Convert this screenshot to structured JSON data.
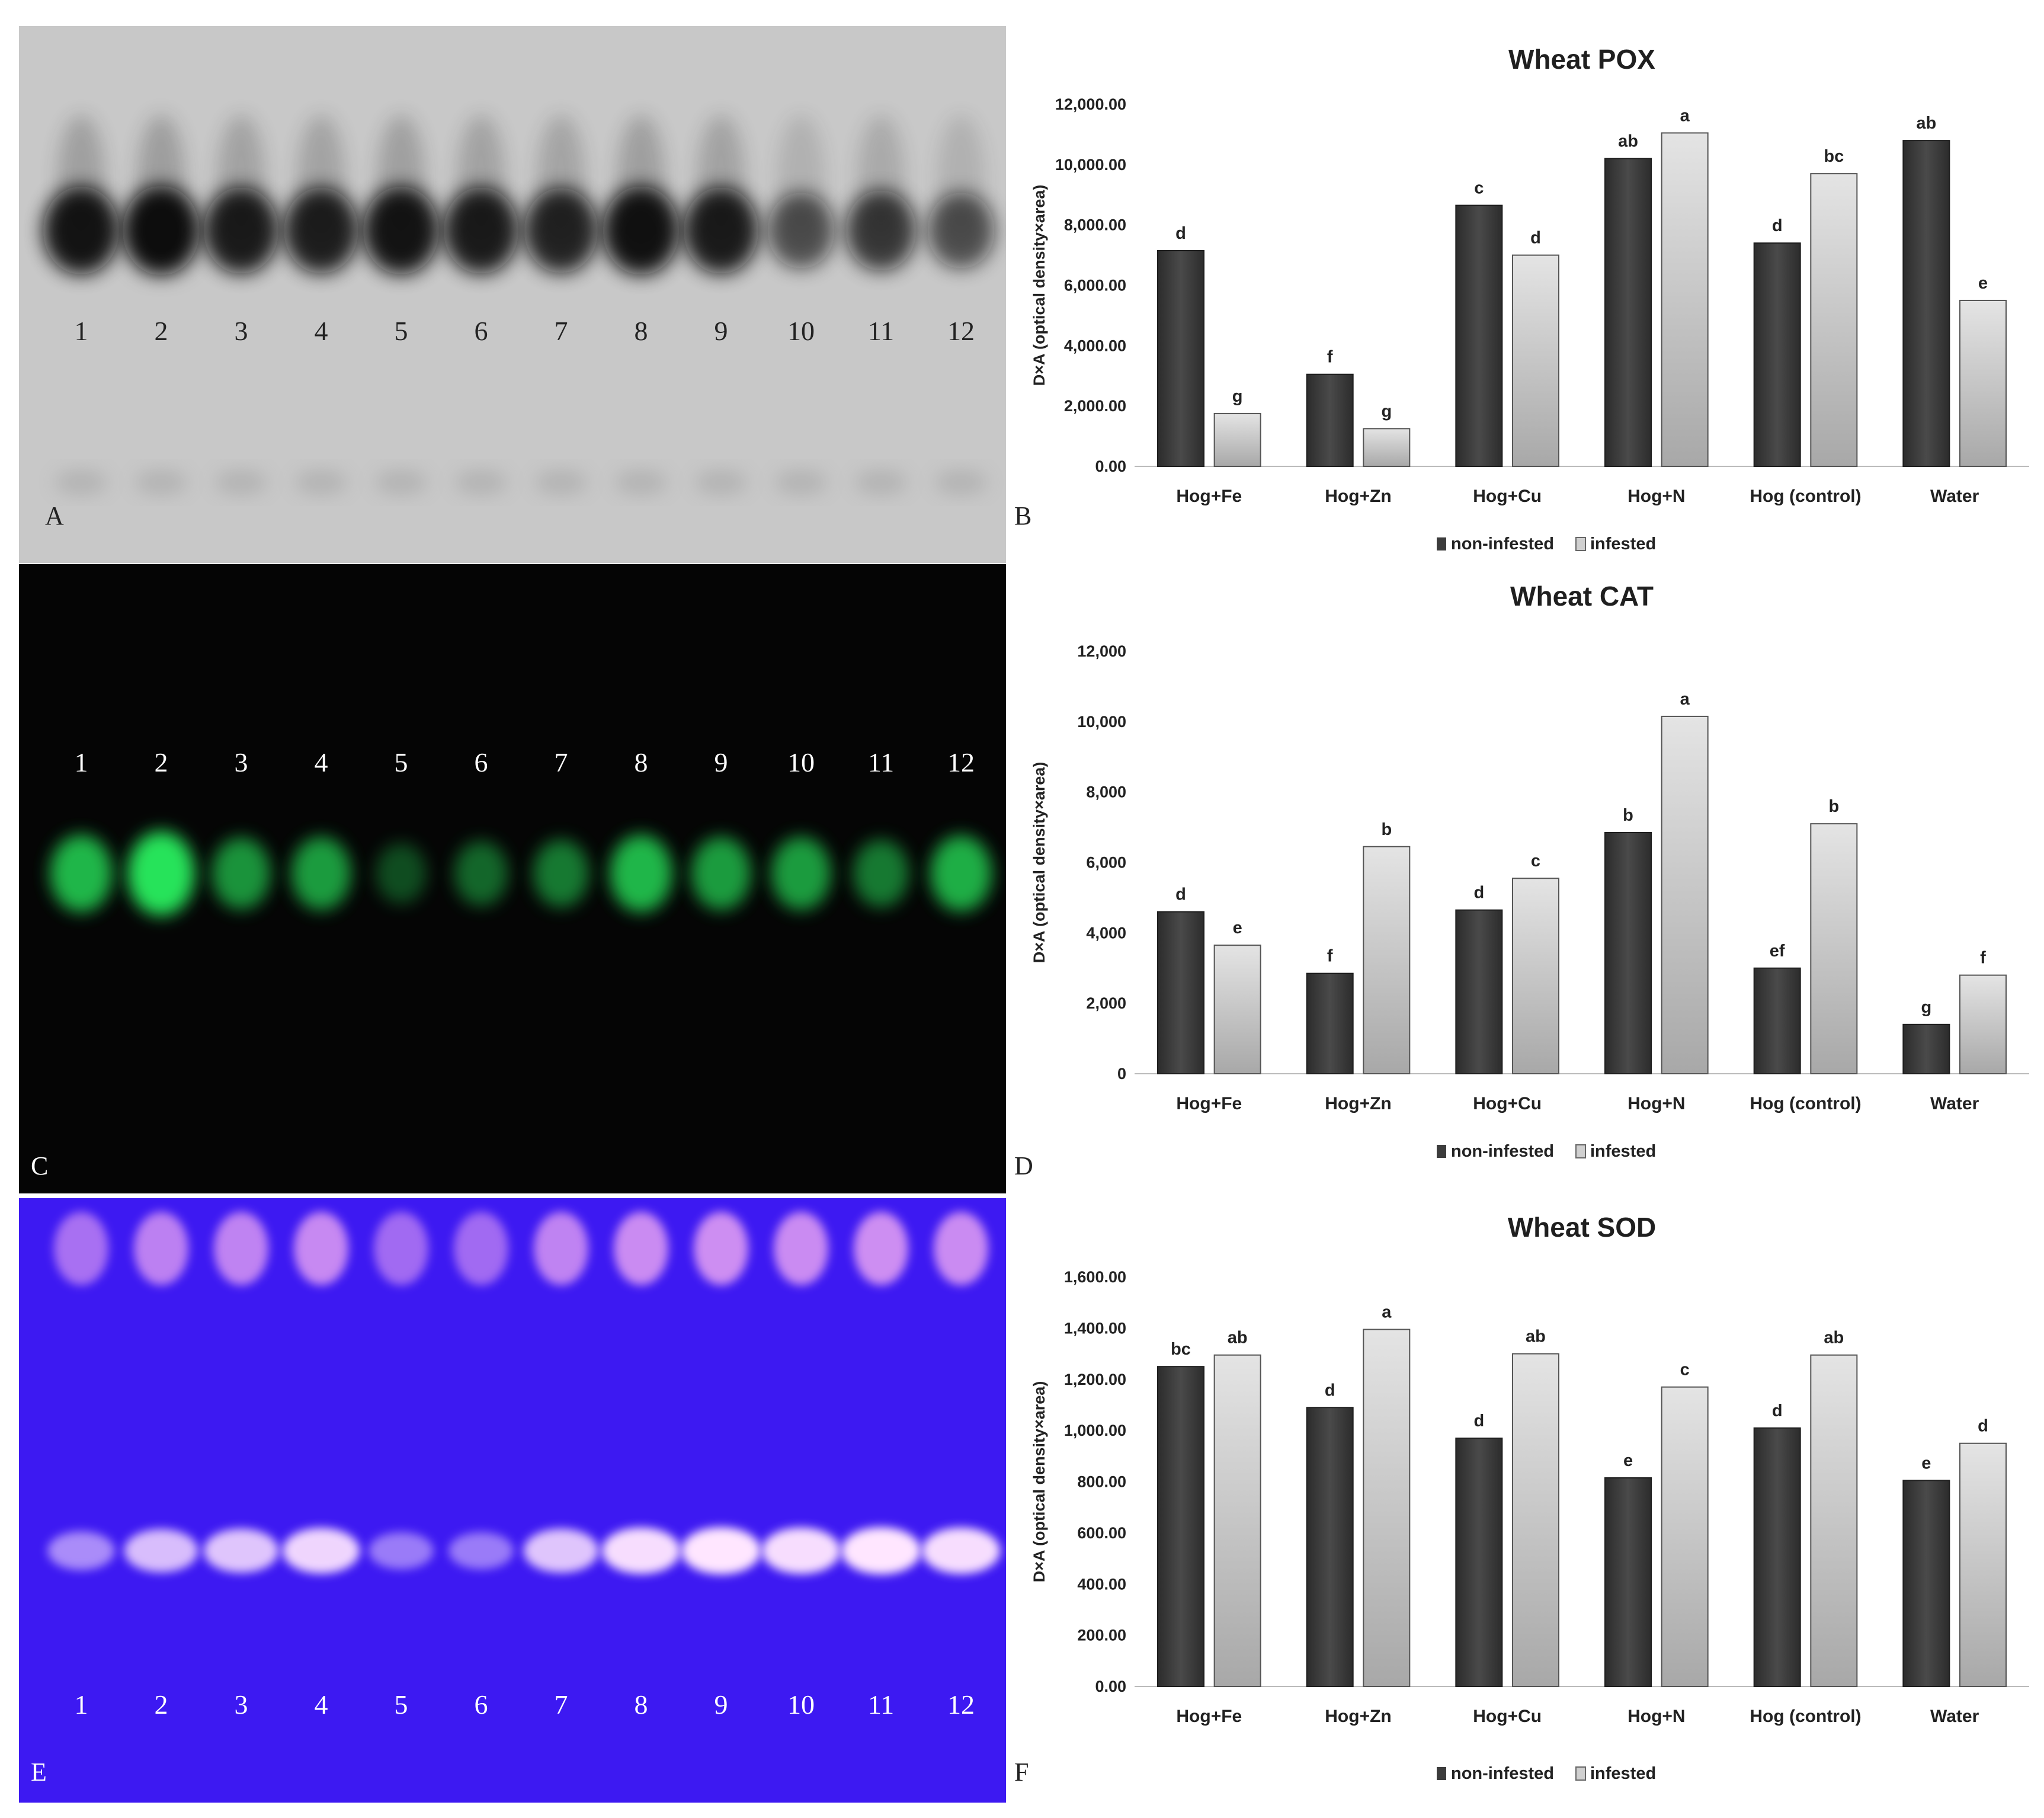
{
  "panels": {
    "a": "A",
    "b": "B",
    "c": "C",
    "d": "D",
    "e": "E",
    "f": "F"
  },
  "gels": {
    "lanes": [
      "1",
      "2",
      "3",
      "4",
      "5",
      "6",
      "7",
      "8",
      "9",
      "10",
      "11",
      "12"
    ],
    "pox_band_intensity": [
      0.95,
      1.0,
      0.9,
      0.88,
      0.95,
      0.9,
      0.85,
      0.97,
      0.9,
      0.55,
      0.7,
      0.55
    ],
    "cat_band_intensity": [
      0.75,
      1.0,
      0.55,
      0.6,
      0.15,
      0.3,
      0.4,
      0.75,
      0.6,
      0.6,
      0.4,
      0.7
    ],
    "sod_band_intensity": [
      0.45,
      0.75,
      0.8,
      0.9,
      0.35,
      0.35,
      0.8,
      0.95,
      1.0,
      0.95,
      1.0,
      0.95
    ],
    "colors": {
      "pox_bg": "#c8c8c8",
      "cat_bg": "#050505",
      "cat_band": "#27e35a",
      "sod_bg": "#3d19f2",
      "sod_band": "#ffe6ff"
    }
  },
  "legend": {
    "non_infested": "non-infested",
    "infested": "infested"
  },
  "colors": {
    "non_infested": "#3c3c3c",
    "infested": "#d0d0d0"
  },
  "chart_data": [
    {
      "type": "bar",
      "title": "Wheat POX",
      "ylabel": "D×A (optical density×area)",
      "xlabel": "",
      "ylim": [
        0,
        12000
      ],
      "yticks": [
        "0.00",
        "2,000.00",
        "4,000.00",
        "6,000.00",
        "8,000.00",
        "10,000.00",
        "12,000.00"
      ],
      "categories": [
        "Hog+Fe",
        "Hog+Zn",
        "Hog+Cu",
        "Hog+N",
        "Hog (control)",
        "Water"
      ],
      "series": [
        {
          "name": "non-infested",
          "values": [
            7150,
            3050,
            8650,
            10200,
            7400,
            10800
          ],
          "letters": [
            "d",
            "f",
            "c",
            "ab",
            "d",
            "ab"
          ]
        },
        {
          "name": "infested",
          "values": [
            1750,
            1250,
            7000,
            11050,
            9700,
            5500
          ],
          "letters": [
            "g",
            "g",
            "d",
            "a",
            "bc",
            "e"
          ]
        }
      ],
      "legend": "bottom-center",
      "grid": false
    },
    {
      "type": "bar",
      "title": "Wheat CAT",
      "ylabel": "D×A (optical density×area)",
      "xlabel": "",
      "ylim": [
        0,
        12000
      ],
      "yticks": [
        "0",
        "2,000",
        "4,000",
        "6,000",
        "8,000",
        "10,000",
        "12,000"
      ],
      "categories": [
        "Hog+Fe",
        "Hog+Zn",
        "Hog+Cu",
        "Hog+N",
        "Hog (control)",
        "Water"
      ],
      "series": [
        {
          "name": "non-infested",
          "values": [
            4600,
            2850,
            4650,
            6850,
            3000,
            1400
          ],
          "letters": [
            "d",
            "f",
            "d",
            "b",
            "ef",
            "g"
          ]
        },
        {
          "name": "infested",
          "values": [
            3650,
            6450,
            5550,
            10150,
            7100,
            2800
          ],
          "letters": [
            "e",
            "b",
            "c",
            "a",
            "b",
            "f"
          ]
        }
      ],
      "legend": "bottom-center",
      "grid": false
    },
    {
      "type": "bar",
      "title": "Wheat SOD",
      "ylabel": "D×A (optical density×area)",
      "xlabel": "",
      "ylim": [
        0,
        1600
      ],
      "yticks": [
        "0.00",
        "200.00",
        "400.00",
        "600.00",
        "800.00",
        "1,000.00",
        "1,200.00",
        "1,400.00",
        "1,600.00"
      ],
      "categories": [
        "Hog+Fe",
        "Hog+Zn",
        "Hog+Cu",
        "Hog+N",
        "Hog (control)",
        "Water"
      ],
      "series": [
        {
          "name": "non-infested",
          "values": [
            1250,
            1090,
            970,
            815,
            1010,
            805
          ],
          "letters": [
            "bc",
            "d",
            "d",
            "e",
            "d",
            "e"
          ]
        },
        {
          "name": "infested",
          "values": [
            1295,
            1395,
            1300,
            1170,
            1295,
            950
          ],
          "letters": [
            "ab",
            "a",
            "ab",
            "c",
            "ab",
            "d"
          ]
        }
      ],
      "legend": "bottom-center",
      "grid": false
    }
  ]
}
